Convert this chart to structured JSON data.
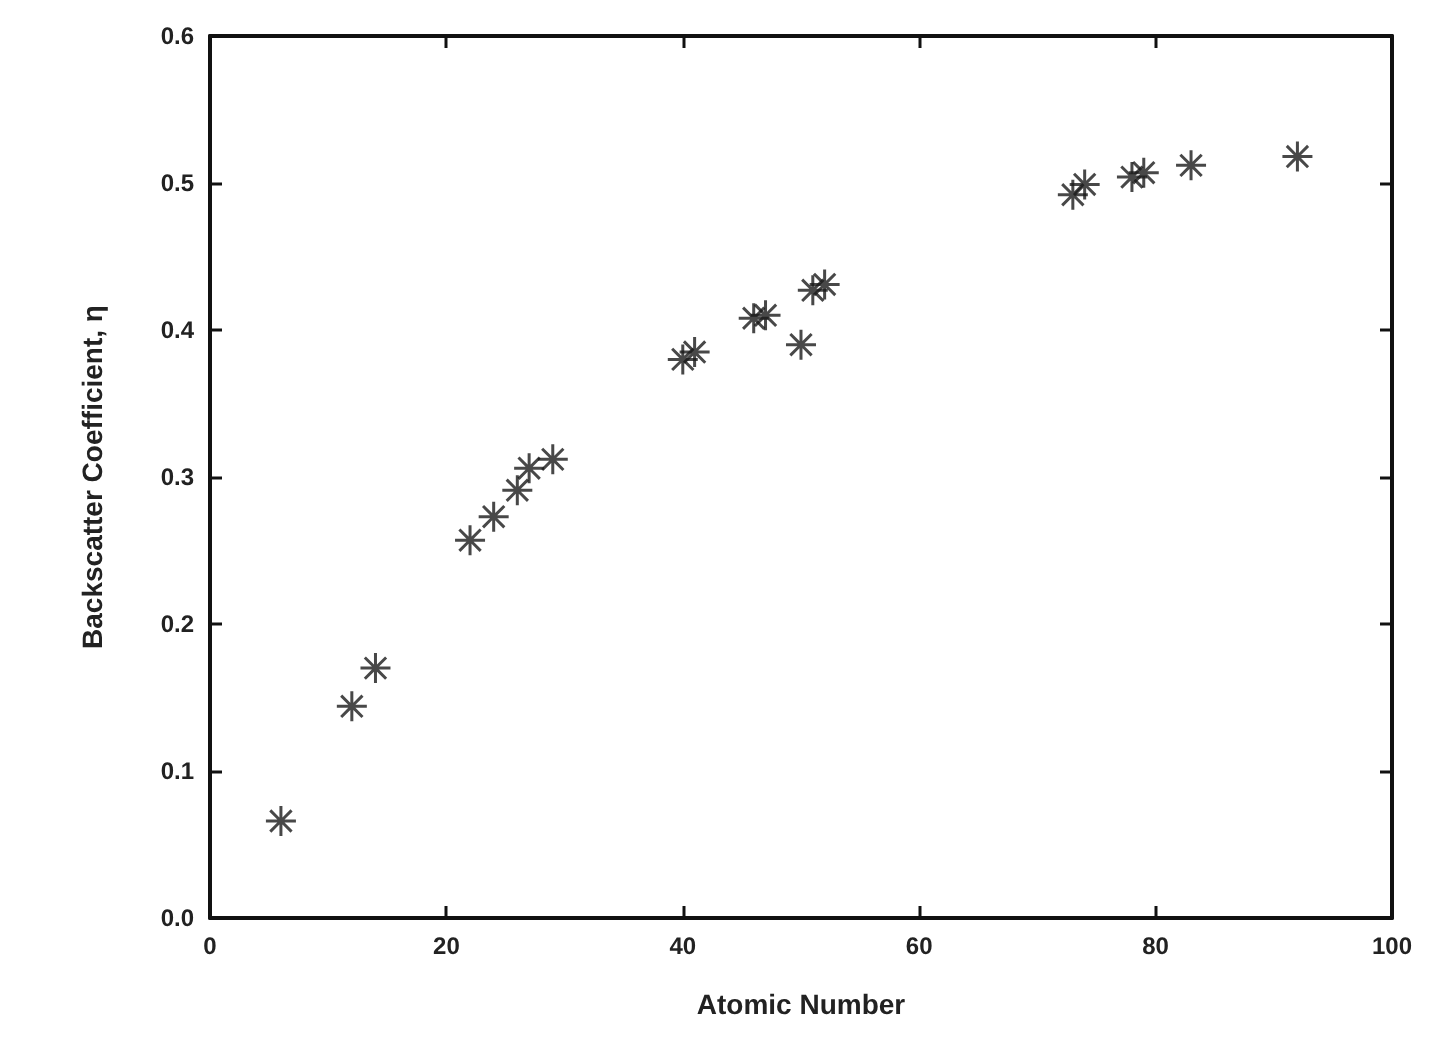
{
  "chart_data": {
    "type": "scatter",
    "xlabel": "Atomic Number",
    "ylabel": "Backscatter Coefficient, η",
    "x": [
      6,
      12,
      14,
      22,
      24,
      26,
      27,
      29,
      40,
      41,
      46,
      47,
      50,
      51,
      52,
      73,
      74,
      78,
      79,
      83,
      92
    ],
    "series": [
      {
        "color": "#1a1a1a",
        "values": [
          0.066,
          0.144,
          0.17,
          0.257,
          0.273,
          0.291,
          0.306,
          0.312,
          0.38,
          0.385,
          0.408,
          0.41,
          0.39,
          0.427,
          0.431,
          0.492,
          0.499,
          0.504,
          0.507,
          0.512,
          0.518
        ]
      }
    ],
    "xlim": [
      0,
      100
    ],
    "xticks": [
      0,
      20,
      40,
      60,
      80,
      100
    ],
    "ylim": [
      0,
      0.6
    ],
    "yticks": [
      {
        "value": 0,
        "label": "0.0"
      },
      {
        "value": 0.1,
        "label": "0.1"
      },
      {
        "value": 0.2,
        "label": "0.2"
      },
      {
        "value": 0.3,
        "label": "0.3"
      },
      {
        "value": 0.4,
        "label": "0.4"
      },
      {
        "value": 0.5,
        "label": "0.5"
      },
      {
        "value": 0.6,
        "label": "0.6"
      }
    ],
    "grid": false,
    "marker": "star"
  }
}
